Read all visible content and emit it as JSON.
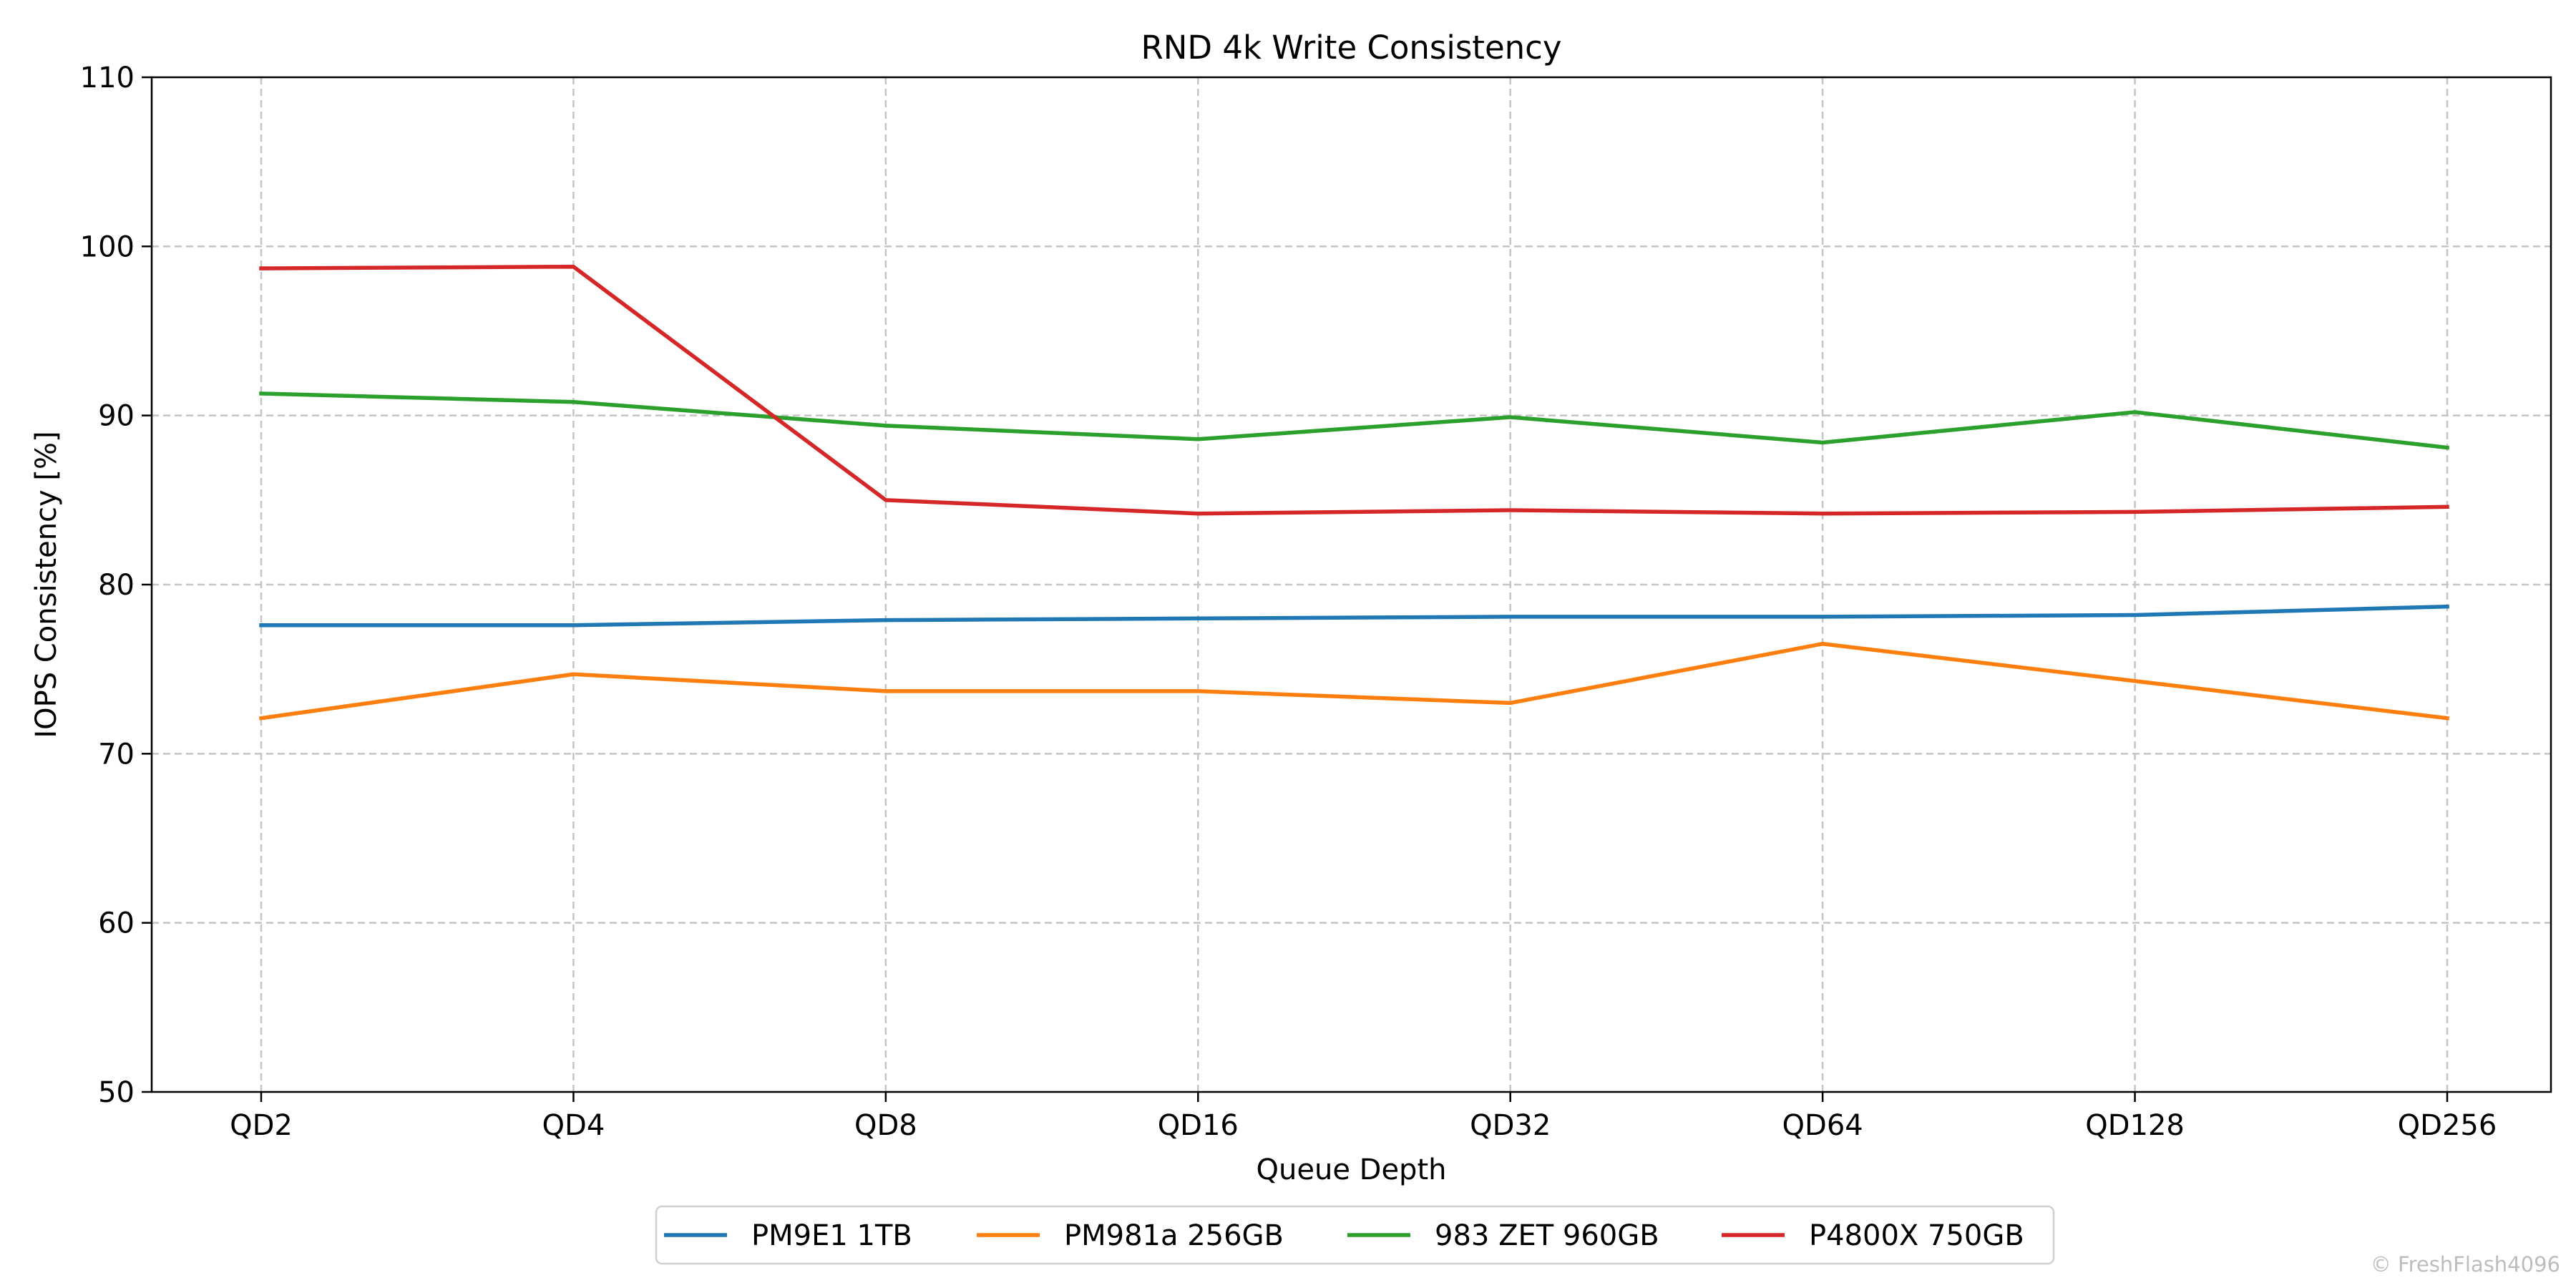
{
  "chart_data": {
    "type": "line",
    "title": "RND 4k Write Consistency",
    "xlabel": "Queue Depth",
    "ylabel": "IOPS Consistency [%]",
    "categories": [
      "QD2",
      "QD4",
      "QD8",
      "QD16",
      "QD32",
      "QD64",
      "QD128",
      "QD256"
    ],
    "ylim": [
      50,
      110
    ],
    "yticks": [
      50,
      60,
      70,
      80,
      90,
      100,
      110
    ],
    "grid": true,
    "legend_position": "bottom-center",
    "series": [
      {
        "name": "PM9E1 1TB",
        "color": "#1f77b4",
        "values": [
          77.6,
          77.6,
          77.9,
          78.0,
          78.1,
          78.1,
          78.2,
          78.7
        ]
      },
      {
        "name": "PM981a 256GB",
        "color": "#ff7f0e",
        "values": [
          72.1,
          74.7,
          73.7,
          73.7,
          73.0,
          76.5,
          74.3,
          72.1
        ]
      },
      {
        "name": "983 ZET 960GB",
        "color": "#2ca02c",
        "values": [
          91.3,
          90.8,
          89.4,
          88.6,
          89.9,
          88.4,
          90.2,
          88.1
        ]
      },
      {
        "name": "P4800X 750GB",
        "color": "#d62728",
        "values": [
          98.7,
          98.8,
          85.0,
          84.2,
          84.4,
          84.2,
          84.3,
          84.6
        ]
      }
    ]
  },
  "watermark": "© FreshFlash4096"
}
